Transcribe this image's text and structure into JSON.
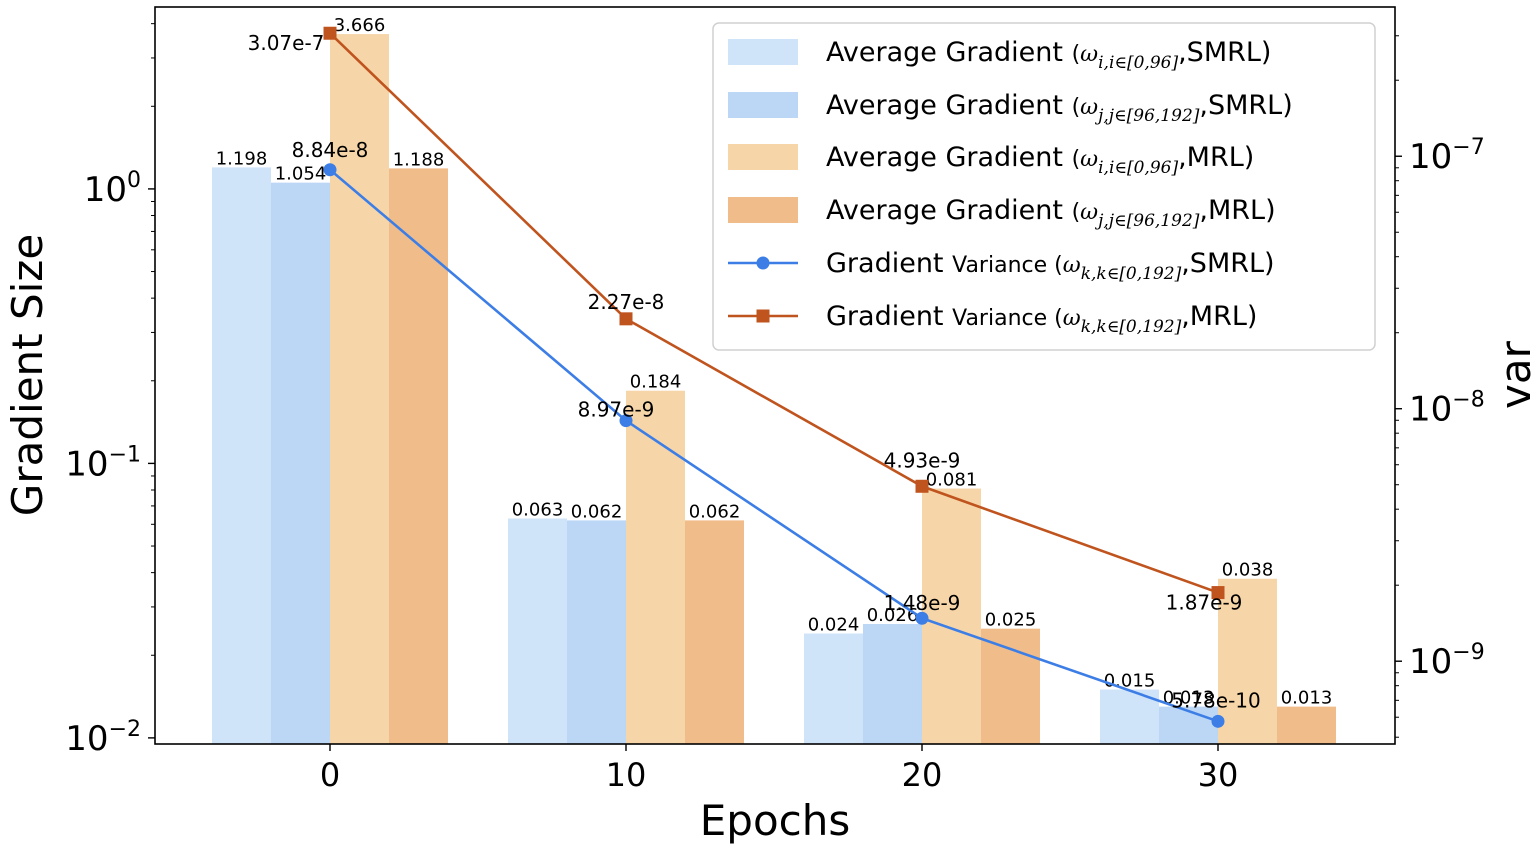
{
  "chart_data": {
    "type": "bar",
    "title": "",
    "xlabel": "Epochs",
    "ylabel": "Gradient Size",
    "ylabel_right": "var",
    "yscale": "log",
    "yscale_right": "log",
    "ylim": [
      0.0095,
      4.6
    ],
    "ylim_right": [
      4.7e-10,
      3.9e-07
    ],
    "categories": [
      "0",
      "10",
      "20",
      "30"
    ],
    "y_ticks": [
      {
        "value": 1,
        "base": "10",
        "exp": "0"
      },
      {
        "value": 0.1,
        "base": "10",
        "exp": "−1"
      },
      {
        "value": 0.01,
        "base": "10",
        "exp": "−2"
      }
    ],
    "y_ticks_right": [
      {
        "value": 1e-07,
        "base": "10",
        "exp": "−7"
      },
      {
        "value": 1e-08,
        "base": "10",
        "exp": "−8"
      },
      {
        "value": 1e-09,
        "base": "10",
        "exp": "−9"
      }
    ],
    "bar_series": [
      {
        "name": "Average Gradient (ωi,i∈[0,96],SMRL)",
        "color": "#cfe4f9",
        "values": [
          1.198,
          0.063,
          0.024,
          0.015
        ],
        "labels": [
          "1.198",
          "0.063",
          "0.024",
          "0.015"
        ],
        "legend": {
          "prefix": "Average Gradient",
          "sym": "ω",
          "sub": "i,i∈[0,96]",
          "suffix": ",SMRL)"
        }
      },
      {
        "name": "Average Gradient (ωj,j∈[96,192],SMRL)",
        "color": "#bcd7f6",
        "values": [
          1.054,
          0.062,
          0.026,
          0.013
        ],
        "labels": [
          "1.054",
          "0.062",
          "0.026",
          "0.013"
        ],
        "legend": {
          "prefix": "Average Gradient",
          "sym": "ω",
          "sub": "j,j∈[96,192]",
          "suffix": ",SMRL)"
        }
      },
      {
        "name": "Average Gradient (ωi,i∈[0,96],MRL)",
        "color": "#f6d6a9",
        "values": [
          3.666,
          0.184,
          0.081,
          0.038
        ],
        "labels": [
          "3.666",
          "0.184",
          "0.081",
          "0.038"
        ],
        "legend": {
          "prefix": "Average Gradient",
          "sym": "ω",
          "sub": "i,i∈[0,96]",
          "suffix": ",MRL)"
        }
      },
      {
        "name": "Average Gradient (ωj,j∈[96,192],MRL)",
        "color": "#f0bd8a",
        "values": [
          1.188,
          0.062,
          0.025,
          0.013
        ],
        "labels": [
          "1.188",
          "0.062",
          "0.025",
          "0.013"
        ],
        "legend": {
          "prefix": "Average Gradient",
          "sym": "ω",
          "sub": "j,j∈[96,192]",
          "suffix": ",MRL)"
        }
      }
    ],
    "line_series": [
      {
        "name": "Gradient Variance (ωk,k∈[0,192],SMRL)",
        "color": "#3d7ee6",
        "marker": "circle",
        "x": [
          0,
          10,
          20,
          30
        ],
        "values": [
          8.84e-08,
          8.97e-09,
          1.48e-09,
          5.78e-10
        ],
        "labels": [
          "8.84e-8",
          "8.97e-9",
          "1.48e-9",
          "5.78e-10"
        ],
        "legend": {
          "prefix": "Gradient",
          "prefix2": "Variance",
          "sym": "ω",
          "sub": "k,k∈[0,192]",
          "suffix": ",SMRL)"
        }
      },
      {
        "name": "Gradient Variance (ωk,k∈[0,192],MRL)",
        "color": "#c0541e",
        "marker": "square",
        "x": [
          0,
          10,
          20,
          30
        ],
        "values": [
          3.07e-07,
          2.27e-08,
          4.93e-09,
          1.87e-09
        ],
        "labels": [
          "3.07e-7",
          "2.27e-8",
          "4.93e-9",
          "1.87e-9"
        ],
        "legend": {
          "prefix": "Gradient",
          "prefix2": "Variance",
          "sym": "ω",
          "sub": "k,k∈[0,192]",
          "suffix": ",MRL)"
        }
      }
    ],
    "legend_position": "upper-right",
    "grid": false
  }
}
